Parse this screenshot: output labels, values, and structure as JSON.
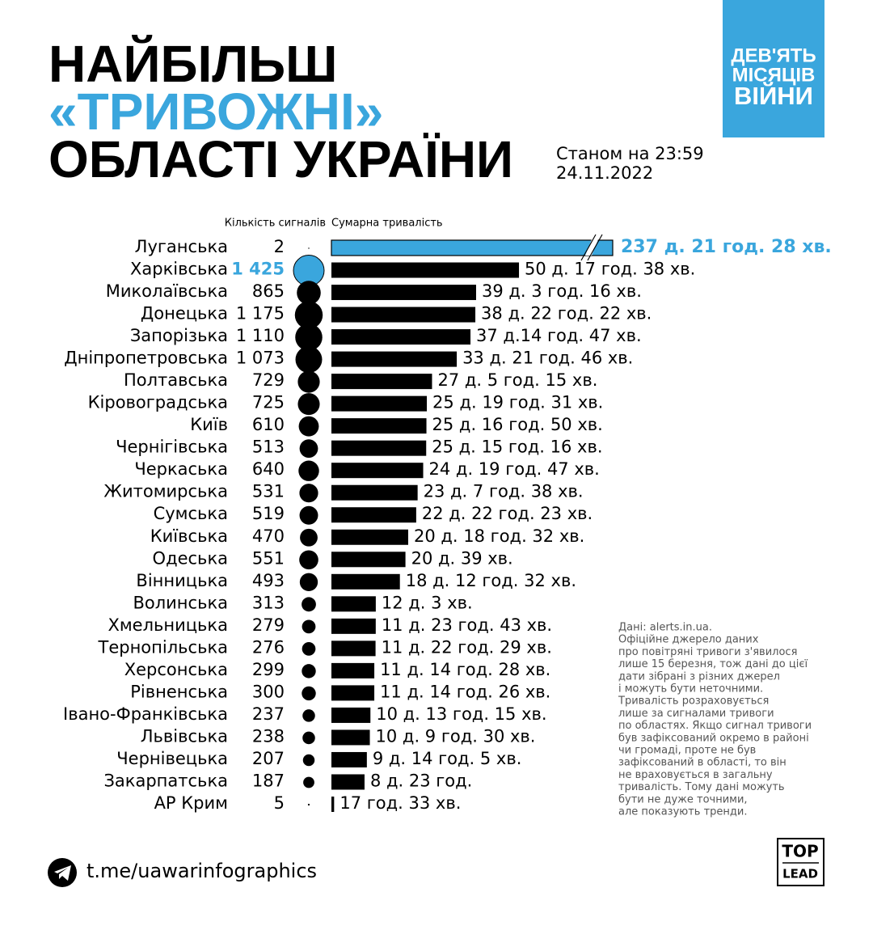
{
  "chart_data": {
    "type": "bar",
    "title": [
      "НАЙБІЛЬШ",
      "«ТРИВОЖНІ»",
      "ОБЛАСТІ УКРАЇНИ"
    ],
    "subtitle": [
      "Станом на 23:59",
      "24.11.2022"
    ],
    "badge": [
      "ДЕВ'ЯТЬ",
      "МІСЯЦІВ",
      "ВІЙНИ"
    ],
    "categories": [
      "Луганська",
      "Харківська",
      "Миколаївська",
      "Донецька",
      "Запорізька",
      "Дніпропетровська",
      "Полтавська",
      "Кіровоградська",
      "Київ",
      "Чернігівська",
      "Черкаська",
      "Житомирська",
      "Сумська",
      "Київська",
      "Одеська",
      "Вінницька",
      "Волинська",
      "Хмельницька",
      "Тернопільська",
      "Херсонська",
      "Рівненська",
      "Івано-Франківська",
      "Львівська",
      "Чернівецька",
      "Закарпатська",
      "АР Крим"
    ],
    "series": [
      {
        "name": "Кількість сигналів",
        "color": "#000000",
        "highlight": {
          "index": 1,
          "color": "#3aa6dd"
        },
        "values": [
          2,
          1425,
          865,
          1175,
          1110,
          1073,
          729,
          725,
          610,
          513,
          640,
          531,
          519,
          470,
          551,
          493,
          313,
          279,
          276,
          299,
          300,
          237,
          238,
          207,
          187,
          5
        ],
        "value_labels": [
          "2",
          "1 425",
          "865",
          "1 175",
          "1 110",
          "1 073",
          "729",
          "725",
          "610",
          "513",
          "640",
          "531",
          "519",
          "470",
          "551",
          "493",
          "313",
          "279",
          "276",
          "299",
          "300",
          "237",
          "238",
          "207",
          "187",
          "5"
        ]
      },
      {
        "name": "Сумарна тривалість",
        "color": "#000000",
        "highlight": {
          "index": 0,
          "color": "#3aa6dd"
        },
        "values": [
          342568,
          73058,
          56356,
          56062,
          54167,
          48826,
          39195,
          37171,
          37010,
          36916,
          35747,
          33578,
          33023,
          29912,
          28839,
          26672,
          17283,
          17263,
          17189,
          16708,
          16706,
          15195,
          14970,
          13805,
          12900,
          1053
        ],
        "value_labels": [
          "237 д. 21 год. 28 хв.",
          "50 д. 17 год. 38 хв.",
          "39 д. 3 год. 16 хв.",
          "38 д. 22 год. 22 хв.",
          "37 д.14 год. 47 хв.",
          "33 д. 21 год. 46 хв.",
          "27 д. 5 год. 15 хв.",
          "25 д. 19 год. 31 хв.",
          "25 д. 16 год. 50 хв.",
          "25 д. 15 год. 16 хв.",
          "24 д. 19 год. 47 хв.",
          "23 д. 7 год. 38 хв.",
          "22 д. 22 год. 23 хв.",
          "20 д. 18 год. 32 хв.",
          "20 д. 39 хв.",
          "18 д. 12 год. 32 хв.",
          "12 д. 3 хв.",
          "11 д. 23 год. 43 хв.",
          "11 д. 22 год. 29 хв.",
          "11 д. 14 год. 28 хв.",
          "11 д. 14 год. 26 хв.",
          "10 д. 13 год. 15 хв.",
          "10 д. 9 год. 30 хв.",
          "9 д. 14 год. 5 хв.",
          "8 д. 23 год.",
          "17 год. 33 хв."
        ]
      }
    ],
    "note": [
      "Дані: alerts.in.ua.",
      "Офіційне джерело даних",
      "про повітряні тривоги з'явилося",
      "лише 15 березня, тож дані до цієї",
      "дати зібрані з різних джерел",
      "і можуть бути неточними.",
      "Тривалість розраховується",
      "лише за сигналами тривоги",
      "по областях. Якщо сигнал тривоги",
      "був зафіксований окремо в районі",
      "чи громаді, проте не був",
      "зафіксований в області, то він",
      "не враховується в загальну",
      "тривалість. Тому дані можуть",
      "бути не дуже точними,",
      "але показують тренди."
    ],
    "link": "t.me/uawarinfographics",
    "logo": [
      "TOP",
      "LEAD"
    ]
  }
}
